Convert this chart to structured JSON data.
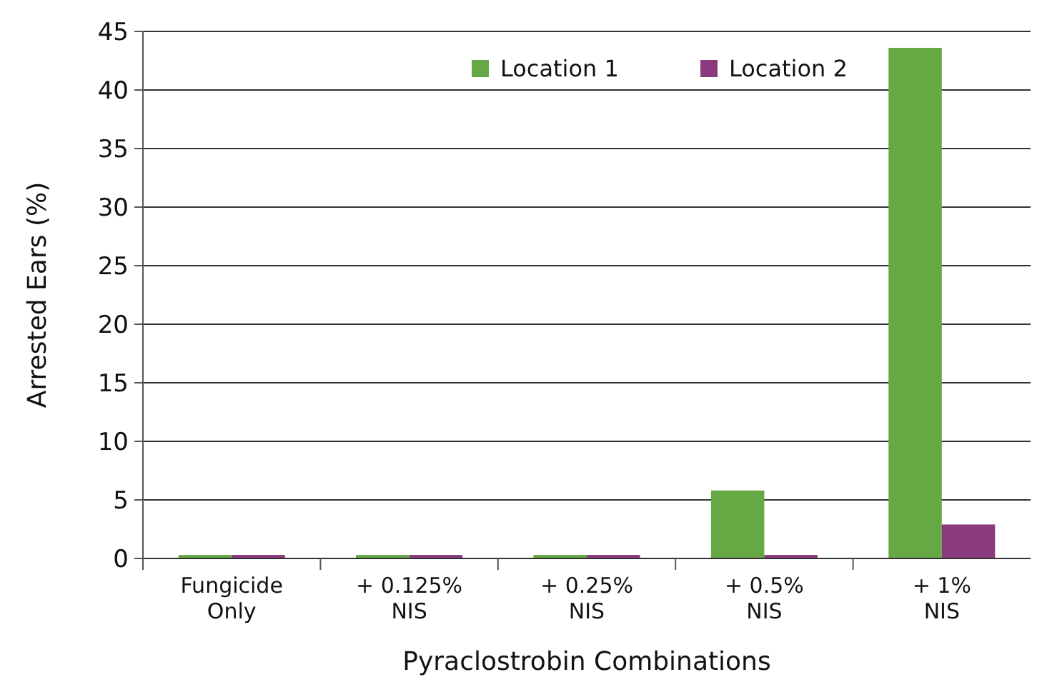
{
  "chart_data": {
    "type": "bar",
    "xlabel": "Pyraclostrobin Combinations",
    "ylabel": "Arrested Ears (%)",
    "categories": [
      "Fungicide\nOnly",
      "+ 0.125%\nNIS",
      "+ 0.25%\nNIS",
      "+ 0.5%\nNIS",
      "+ 1%\nNIS"
    ],
    "series": [
      {
        "name": "Location 1",
        "color": "#65a844",
        "values": [
          0.3,
          0.3,
          0.3,
          5.8,
          43.6
        ]
      },
      {
        "name": "Location 2",
        "color": "#8a3a7d",
        "values": [
          0.3,
          0.3,
          0.3,
          0.3,
          2.9
        ]
      }
    ],
    "ylim": [
      0,
      45
    ],
    "yticks": [
      0,
      5,
      10,
      15,
      20,
      25,
      30,
      35,
      40,
      45
    ],
    "grid": "y",
    "legend": "top"
  }
}
